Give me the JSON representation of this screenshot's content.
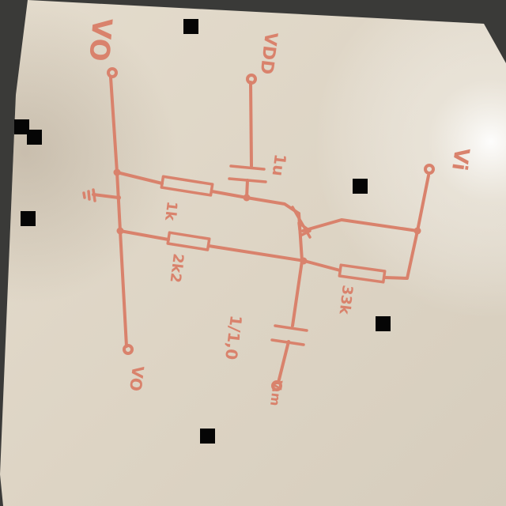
{
  "colors": {
    "ink": "#d9826c",
    "paper": "#e2d9cb",
    "background": "#3a3a38"
  },
  "labels": {
    "vo_top": "VO",
    "vdd": "VDD",
    "cap_top": "1u",
    "vi_right": "Vi",
    "r_1k": "1k",
    "r_2k2": "2k2",
    "r_33k": "33k",
    "cap_bottom": "1/1,0",
    "vo_bottom": "VO",
    "v_bottom": "V.m"
  }
}
